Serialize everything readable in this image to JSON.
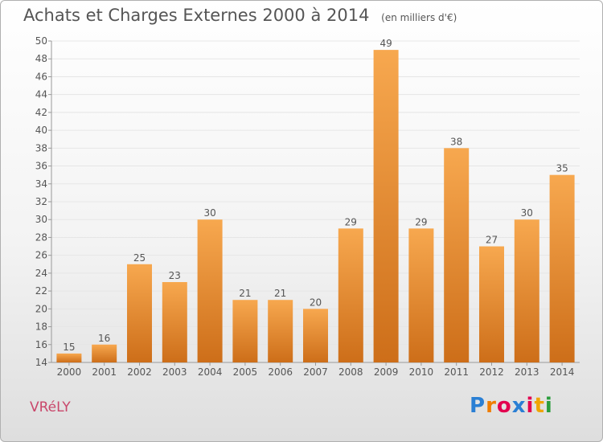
{
  "title": "Achats et Charges Externes 2000 à 2014",
  "subtitle": "(en milliers d'€)",
  "commune": "VRéLY",
  "logo": {
    "text": "Proxiti",
    "letter_colors": [
      "#2a7fd4",
      "#ef7d00",
      "#e3004f",
      "#2a7fd4",
      "#e3004f",
      "#f0a400",
      "#2a9d3c"
    ]
  },
  "colors": {
    "bar_top": "#f7a84f",
    "bar_bottom": "#cd6e19",
    "axis": "#999999",
    "grid": "#e6e6e6",
    "text": "#555555"
  },
  "chart_data": {
    "type": "bar",
    "title": "Achats et Charges Externes 2000 à 2014",
    "subtitle": "(en milliers d'€)",
    "categories": [
      "2000",
      "2001",
      "2002",
      "2003",
      "2004",
      "2005",
      "2006",
      "2007",
      "2008",
      "2009",
      "2010",
      "2011",
      "2012",
      "2013",
      "2014"
    ],
    "values": [
      15,
      16,
      25,
      23,
      30,
      21,
      21,
      20,
      29,
      49,
      29,
      38,
      27,
      30,
      35
    ],
    "ylim": [
      14,
      50
    ],
    "yticks": [
      14,
      16,
      18,
      20,
      22,
      24,
      26,
      28,
      30,
      32,
      34,
      36,
      38,
      40,
      42,
      44,
      46,
      48,
      50
    ],
    "grid": true,
    "data_labels": true
  }
}
